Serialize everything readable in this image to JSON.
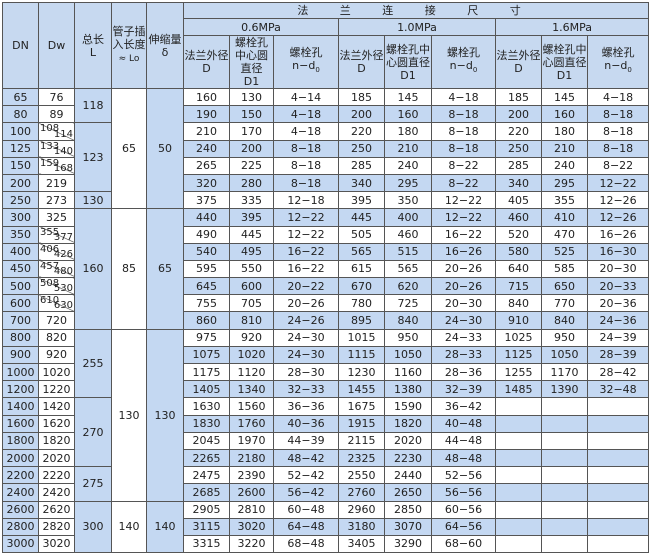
{
  "header": {
    "dn": "DN",
    "dw": "Dw",
    "length": "总长",
    "length_sym": "L",
    "insert": "管子插入长度",
    "insert_sym": "≈ Lo",
    "expansion": "伸缩量",
    "expansion_sym": "δ",
    "flange_title": "法 兰 连 接 尺 寸",
    "pressures": [
      "0.6MPa",
      "1.0MPa",
      "1.6MPa"
    ],
    "sub": {
      "d": "法兰外径",
      "d_sym": "D",
      "d1": "螺栓孔中心圆直径",
      "d1_sym": "D1",
      "n": "螺栓孔",
      "n_sym": "n−d",
      "n_sub": "0"
    }
  },
  "colors": {
    "header_blue": "#c7d9f0",
    "row_blue": "#c4d8f2"
  },
  "rows": [
    {
      "dn": "65",
      "dw": "76",
      "p06": [
        "160",
        "130",
        "4−14"
      ],
      "p10": [
        "185",
        "145",
        "4−18"
      ],
      "p16": [
        "185",
        "145",
        "4−18"
      ]
    },
    {
      "dn": "80",
      "dw": "89",
      "p06": [
        "190",
        "150",
        "4−18"
      ],
      "p10": [
        "200",
        "160",
        "8−18"
      ],
      "p16": [
        "200",
        "160",
        "8−18"
      ]
    },
    {
      "dn": "100",
      "dw": [
        "108",
        "114"
      ],
      "p06": [
        "210",
        "170",
        "4−18"
      ],
      "p10": [
        "220",
        "180",
        "8−18"
      ],
      "p16": [
        "220",
        "180",
        "8−18"
      ]
    },
    {
      "dn": "125",
      "dw": [
        "133",
        "140"
      ],
      "p06": [
        "240",
        "200",
        "8−18"
      ],
      "p10": [
        "250",
        "210",
        "8−18"
      ],
      "p16": [
        "250",
        "210",
        "8−18"
      ]
    },
    {
      "dn": "150",
      "dw": [
        "159",
        "168"
      ],
      "p06": [
        "265",
        "225",
        "8−18"
      ],
      "p10": [
        "285",
        "240",
        "8−22"
      ],
      "p16": [
        "285",
        "240",
        "8−22"
      ]
    },
    {
      "dn": "200",
      "dw": "219",
      "p06": [
        "320",
        "280",
        "8−18"
      ],
      "p10": [
        "340",
        "295",
        "8−22"
      ],
      "p16": [
        "340",
        "295",
        "12−22"
      ]
    },
    {
      "dn": "250",
      "dw": "273",
      "p06": [
        "375",
        "335",
        "12−18"
      ],
      "p10": [
        "395",
        "350",
        "12−22"
      ],
      "p16": [
        "405",
        "355",
        "12−26"
      ]
    },
    {
      "dn": "300",
      "dw": "325",
      "p06": [
        "440",
        "395",
        "12−22"
      ],
      "p10": [
        "445",
        "400",
        "12−22"
      ],
      "p16": [
        "460",
        "410",
        "12−26"
      ]
    },
    {
      "dn": "350",
      "dw": [
        "355",
        "377"
      ],
      "p06": [
        "490",
        "445",
        "12−22"
      ],
      "p10": [
        "505",
        "460",
        "16−22"
      ],
      "p16": [
        "520",
        "470",
        "16−26"
      ]
    },
    {
      "dn": "400",
      "dw": [
        "406",
        "426"
      ],
      "p06": [
        "540",
        "495",
        "16−22"
      ],
      "p10": [
        "565",
        "515",
        "16−26"
      ],
      "p16": [
        "580",
        "525",
        "16−30"
      ]
    },
    {
      "dn": "450",
      "dw": [
        "457",
        "480"
      ],
      "p06": [
        "595",
        "550",
        "16−22"
      ],
      "p10": [
        "615",
        "565",
        "20−26"
      ],
      "p16": [
        "640",
        "585",
        "20−30"
      ]
    },
    {
      "dn": "500",
      "dw": [
        "508",
        "530"
      ],
      "p06": [
        "645",
        "600",
        "20−22"
      ],
      "p10": [
        "670",
        "620",
        "20−26"
      ],
      "p16": [
        "715",
        "650",
        "20−33"
      ]
    },
    {
      "dn": "600",
      "dw": [
        "610",
        "630"
      ],
      "p06": [
        "755",
        "705",
        "20−26"
      ],
      "p10": [
        "780",
        "725",
        "20−30"
      ],
      "p16": [
        "840",
        "770",
        "20−36"
      ]
    },
    {
      "dn": "700",
      "dw": "720",
      "p06": [
        "860",
        "810",
        "24−26"
      ],
      "p10": [
        "895",
        "840",
        "24−30"
      ],
      "p16": [
        "910",
        "840",
        "24−36"
      ]
    },
    {
      "dn": "800",
      "dw": "820",
      "p06": [
        "975",
        "920",
        "24−30"
      ],
      "p10": [
        "1015",
        "950",
        "24−33"
      ],
      "p16": [
        "1025",
        "950",
        "24−39"
      ]
    },
    {
      "dn": "900",
      "dw": "920",
      "p06": [
        "1075",
        "1020",
        "24−30"
      ],
      "p10": [
        "1115",
        "1050",
        "28−33"
      ],
      "p16": [
        "1125",
        "1050",
        "28−39"
      ]
    },
    {
      "dn": "1000",
      "dw": "1020",
      "p06": [
        "1175",
        "1120",
        "28−30"
      ],
      "p10": [
        "1230",
        "1160",
        "28−36"
      ],
      "p16": [
        "1255",
        "1170",
        "28−42"
      ]
    },
    {
      "dn": "1200",
      "dw": "1220",
      "p06": [
        "1405",
        "1340",
        "32−33"
      ],
      "p10": [
        "1455",
        "1380",
        "32−39"
      ],
      "p16": [
        "1485",
        "1390",
        "32−48"
      ]
    },
    {
      "dn": "1400",
      "dw": "1420",
      "p06": [
        "1630",
        "1560",
        "36−36"
      ],
      "p10": [
        "1675",
        "1590",
        "36−42"
      ],
      "p16": [
        "",
        "",
        ""
      ]
    },
    {
      "dn": "1600",
      "dw": "1620",
      "p06": [
        "1830",
        "1760",
        "40−36"
      ],
      "p10": [
        "1915",
        "1820",
        "40−48"
      ],
      "p16": [
        "",
        "",
        ""
      ]
    },
    {
      "dn": "1800",
      "dw": "1820",
      "p06": [
        "2045",
        "1970",
        "44−39"
      ],
      "p10": [
        "2115",
        "2020",
        "44−48"
      ],
      "p16": [
        "",
        "",
        ""
      ]
    },
    {
      "dn": "2000",
      "dw": "2020",
      "p06": [
        "2265",
        "2180",
        "48−42"
      ],
      "p10": [
        "2325",
        "2230",
        "48−48"
      ],
      "p16": [
        "",
        "",
        ""
      ]
    },
    {
      "dn": "2200",
      "dw": "2220",
      "p06": [
        "2475",
        "2390",
        "52−42"
      ],
      "p10": [
        "2550",
        "2440",
        "52−56"
      ],
      "p16": [
        "",
        "",
        ""
      ]
    },
    {
      "dn": "2400",
      "dw": "2420",
      "p06": [
        "2685",
        "2600",
        "56−42"
      ],
      "p10": [
        "2760",
        "2650",
        "56−56"
      ],
      "p16": [
        "",
        "",
        ""
      ]
    },
    {
      "dn": "2600",
      "dw": "2620",
      "p06": [
        "2905",
        "2810",
        "60−48"
      ],
      "p10": [
        "2960",
        "2850",
        "60−56"
      ],
      "p16": [
        "",
        "",
        ""
      ]
    },
    {
      "dn": "2800",
      "dw": "2820",
      "p06": [
        "3115",
        "3020",
        "64−48"
      ],
      "p10": [
        "3180",
        "3070",
        "64−56"
      ],
      "p16": [
        "",
        "",
        ""
      ]
    },
    {
      "dn": "3000",
      "dw": "3020",
      "p06": [
        "3315",
        "3220",
        "68−48"
      ],
      "p10": [
        "3405",
        "3290",
        "68−60"
      ],
      "p16": [
        "",
        "",
        ""
      ]
    }
  ],
  "length_groups": [
    {
      "value": "118",
      "rows": 2
    },
    {
      "value": "123",
      "rows": 4
    },
    {
      "value": "130",
      "rows": 1
    },
    {
      "value": "160",
      "rows": 7
    },
    {
      "value": "255",
      "rows": 4
    },
    {
      "value": "270",
      "rows": 4
    },
    {
      "value": "275",
      "rows": 2
    },
    {
      "value": "300",
      "rows": 3
    }
  ],
  "insert_groups": [
    {
      "value": "65",
      "rows": 7
    },
    {
      "value": "85",
      "rows": 7
    },
    {
      "value": "130",
      "rows": 10
    },
    {
      "value": "140",
      "rows": 3
    }
  ],
  "expansion_groups": [
    {
      "value": "50",
      "rows": 7
    },
    {
      "value": "65",
      "rows": 7
    },
    {
      "value": "130",
      "rows": 10
    },
    {
      "value": "140",
      "rows": 3
    }
  ]
}
